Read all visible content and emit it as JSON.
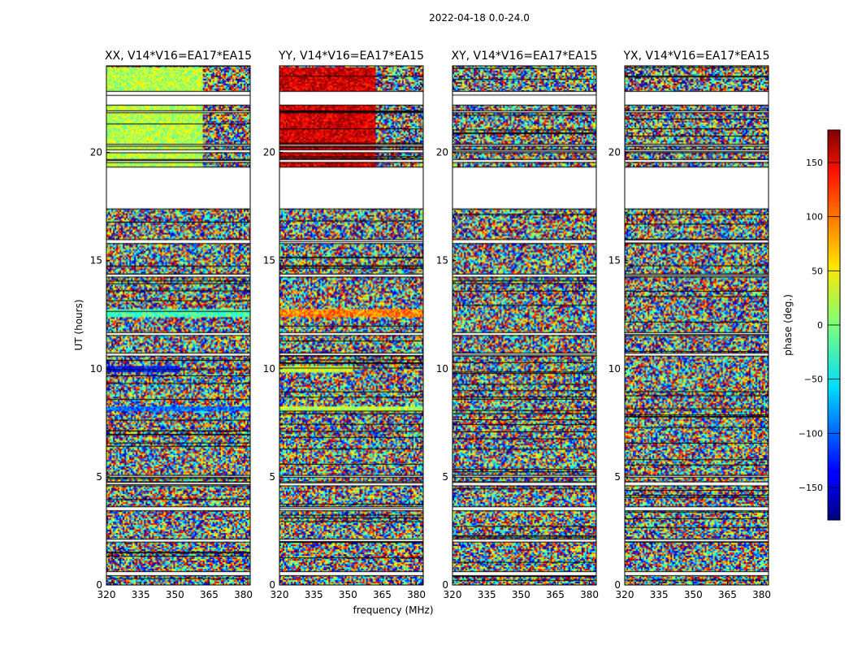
{
  "chart_data": {
    "type": "heatmap",
    "suptitle": "2022-04-18 0.0-24.0",
    "xlabel": "frequency (MHz)",
    "ylabel": "UT (hours)",
    "xlim": [
      320,
      383
    ],
    "ylim": [
      0,
      24
    ],
    "xticks": [
      320,
      335,
      350,
      365,
      380
    ],
    "yticks": [
      0,
      5,
      10,
      15,
      20
    ],
    "colormap": "jet",
    "colorbar": {
      "label": "phase (deg.)",
      "range": [
        -180,
        180
      ],
      "ticks": [
        150,
        100,
        50,
        0,
        -50,
        -100,
        -150
      ],
      "tick_labels": [
        "150",
        "100",
        "50",
        "0",
        "−50",
        "−100",
        "−150"
      ]
    },
    "panels": [
      {
        "title": "XX, V14*V16=EA17*EA15",
        "pol": "XX"
      },
      {
        "title": "YY, V14*V16=EA17*EA15",
        "pol": "YY"
      },
      {
        "title": "XY, V14*V16=EA17*EA15",
        "pol": "XY"
      },
      {
        "title": "YX, V14*V16=EA17*EA15",
        "pol": "YX"
      }
    ],
    "gaps_ut_hours": [
      [
        0.45,
        0.6
      ],
      [
        17.4,
        19.3
      ],
      [
        22.2,
        22.8
      ],
      [
        2.0,
        2.1
      ],
      [
        3.45,
        3.6
      ],
      [
        4.6,
        4.75
      ],
      [
        5.0,
        5.05
      ],
      [
        10.6,
        10.7
      ],
      [
        11.55,
        11.65
      ],
      [
        14.25,
        14.35
      ],
      [
        15.8,
        15.95
      ],
      [
        19.55,
        19.65
      ],
      [
        20.0,
        20.1
      ],
      [
        20.3,
        20.35
      ],
      [
        21.85,
        21.9
      ]
    ],
    "coherent_bands": [
      {
        "ut": [
          9.8,
          10.15
        ],
        "phase": {
          "XX": -130,
          "YY": 30
        },
        "freq_max": 352
      },
      {
        "ut": [
          12.4,
          12.75
        ],
        "phase": {
          "XX": -20,
          "YY": 90
        },
        "freq_max": 383
      },
      {
        "ut": [
          8.0,
          8.25
        ],
        "phase": {
          "XX": -100,
          "YY": 20
        },
        "freq_max": 383
      },
      {
        "ut": [
          19.3,
          23.9
        ],
        "phase": {
          "XX": 20,
          "YY": 150
        },
        "freq_max": 362
      }
    ]
  }
}
